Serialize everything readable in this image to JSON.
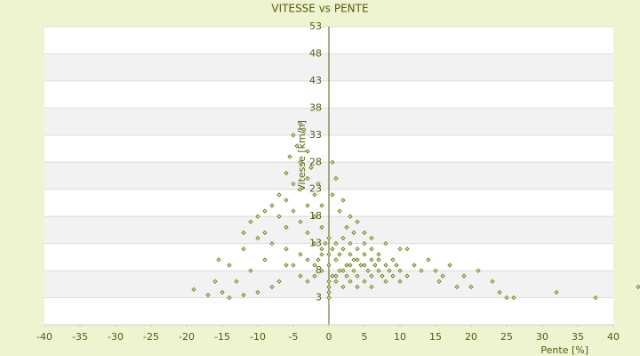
{
  "chart_data": {
    "type": "scatter",
    "title": "VITESSE vs PENTE",
    "x_label": "Pente [%]",
    "y_label": "Vitesse [km/h]",
    "color": "#6b7a1a",
    "grid": true,
    "xlim": [
      -40,
      40
    ],
    "xticks": [
      -40,
      -35,
      -30,
      -25,
      -20,
      -15,
      -10,
      -5,
      0,
      5,
      10,
      15,
      20,
      25,
      30,
      35,
      40
    ],
    "ylim": [
      -2,
      53
    ],
    "yticks": [
      3,
      8,
      13,
      18,
      23,
      28,
      33,
      38,
      43,
      48,
      53
    ],
    "x": [
      -4,
      -3.5,
      -5,
      -4.5,
      -3,
      -5.5,
      -4,
      -2.5,
      -6,
      -3,
      -5,
      -1.5,
      -4,
      -7,
      -2,
      -6,
      -3,
      -8,
      -1,
      -5,
      -9,
      -2,
      -7,
      -10,
      -4,
      -11,
      -6,
      -1,
      -9,
      -3,
      -12,
      0.5,
      1,
      0.5,
      2,
      1.5,
      3,
      4,
      2.5,
      5,
      3.5,
      6,
      8,
      10,
      11,
      -2,
      -1,
      0,
      1,
      2,
      3,
      4,
      5,
      6,
      7,
      8,
      9,
      -3,
      -2,
      -1,
      0,
      1,
      2,
      3,
      4,
      5,
      6,
      7,
      1,
      2,
      3,
      0,
      -1,
      4,
      5,
      6,
      7,
      8,
      9,
      10,
      11,
      -4,
      -5,
      -6,
      -4,
      -3,
      -2,
      1,
      2,
      3,
      4,
      5,
      6,
      0.5,
      1.5,
      2.5,
      3.5,
      4.5,
      5.5,
      6.5,
      7.5,
      1.5,
      2.5,
      3.5,
      -0.5,
      -1.5,
      0.5,
      8.5,
      9.5,
      10,
      12,
      13,
      14,
      15,
      16,
      18,
      17,
      21,
      20,
      23,
      24,
      25,
      26,
      32,
      37.5,
      43.5,
      19,
      15.5,
      -19,
      -16,
      -15,
      -15.5,
      -14,
      -13,
      -12,
      -11,
      -10,
      -9,
      -8,
      -7,
      -6,
      -17,
      -14,
      -12,
      -10,
      -8,
      0,
      0,
      0,
      0
    ],
    "values": [
      35,
      34,
      33,
      31,
      30,
      29,
      28,
      27,
      26,
      25,
      24,
      24,
      23,
      22,
      22,
      21,
      20,
      20,
      20,
      19,
      19,
      18,
      18,
      18,
      17,
      17,
      16,
      16,
      15,
      15,
      15,
      28,
      25,
      22,
      21,
      19,
      18,
      17,
      16,
      15,
      15,
      14,
      13,
      12,
      12,
      13,
      12,
      11,
      10,
      12,
      11,
      10,
      9,
      10,
      8,
      9,
      7,
      10,
      9,
      8,
      9,
      7,
      8,
      9,
      7,
      11,
      7,
      10,
      13,
      14,
      13,
      14,
      11,
      12,
      13,
      12,
      11,
      6,
      10,
      8,
      7,
      11,
      9,
      12,
      7,
      6,
      7,
      6,
      5,
      6,
      5,
      6,
      5,
      12,
      11,
      9,
      8,
      9,
      8,
      9,
      7,
      8,
      7,
      10,
      13,
      10,
      7,
      8,
      9,
      6,
      9,
      8,
      10,
      8,
      7,
      5,
      9,
      8,
      5,
      6,
      4,
      3,
      3,
      4,
      3,
      5,
      7,
      6,
      4.5,
      6,
      4,
      10,
      9,
      6,
      12,
      8,
      4,
      10,
      13,
      6,
      9,
      3.5,
      3,
      3.5,
      14,
      5,
      3,
      4,
      5,
      6
    ]
  }
}
